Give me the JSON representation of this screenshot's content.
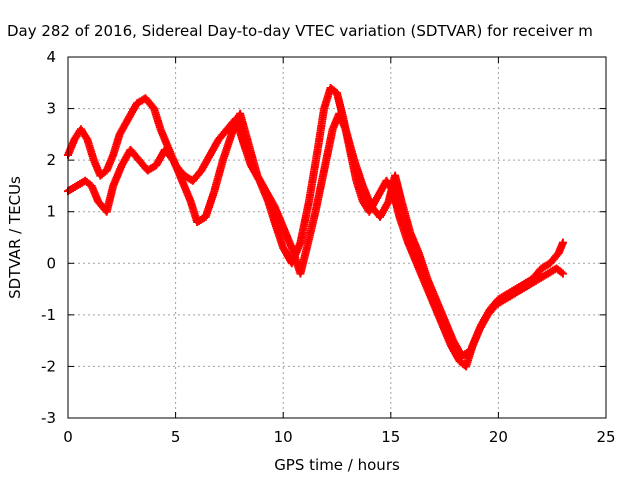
{
  "chart_data": {
    "type": "scatter",
    "title": "Day 282 of 2016, Sidereal Day-to-day VTEC variation (SDTVAR) for receiver m",
    "xlabel": "GPS time / hours",
    "ylabel": "SDTVAR / TECUs",
    "xlim": [
      0,
      25
    ],
    "ylim": [
      -3,
      4
    ],
    "xticks": [
      "0",
      "5",
      "10",
      "15",
      "20",
      "25"
    ],
    "yticks": [
      "4",
      "3",
      "2",
      "1",
      "0",
      "-1",
      "-2",
      "-3"
    ],
    "xtick_values": [
      0,
      5,
      10,
      15,
      20,
      25
    ],
    "ytick_values": [
      4,
      3,
      2,
      1,
      0,
      -1,
      -2,
      -3
    ],
    "grid": true,
    "marker": "plus",
    "color": "#ff0000",
    "series": [
      {
        "x": [
          0.0,
          0.3,
          0.6,
          0.9,
          1.2,
          1.5,
          1.8,
          2.1,
          2.4,
          2.8,
          3.2,
          3.6,
          4.0,
          4.3,
          4.7,
          5.0,
          5.4,
          5.8,
          6.2,
          6.6,
          7.0,
          7.4,
          7.8,
          8.1,
          8.5,
          8.9,
          9.3,
          9.6,
          10.0,
          10.4,
          10.8,
          11.2,
          11.6,
          11.9,
          12.2,
          12.5,
          12.8,
          13.1,
          13.4,
          13.7,
          14.0,
          14.4,
          14.8,
          15.1,
          15.4,
          15.8,
          16.2,
          16.6,
          17.0,
          17.4,
          17.8,
          18.2,
          18.5,
          18.8,
          19.2,
          19.6,
          20.0,
          20.4,
          20.8,
          21.2,
          21.6,
          22.0,
          22.4,
          22.8,
          23.0
        ],
        "y": [
          2.1,
          2.4,
          2.6,
          2.4,
          2.0,
          1.7,
          1.8,
          2.1,
          2.5,
          2.8,
          3.1,
          3.2,
          3.0,
          2.6,
          2.2,
          1.9,
          1.7,
          1.6,
          1.8,
          2.1,
          2.4,
          2.6,
          2.8,
          2.4,
          1.9,
          1.6,
          1.2,
          0.8,
          0.3,
          0.0,
          0.4,
          1.2,
          2.2,
          3.0,
          3.4,
          3.3,
          2.8,
          2.2,
          1.6,
          1.2,
          1.0,
          1.3,
          1.6,
          1.4,
          0.9,
          0.4,
          0.0,
          -0.4,
          -0.8,
          -1.2,
          -1.6,
          -1.9,
          -2.0,
          -1.6,
          -1.2,
          -0.9,
          -0.7,
          -0.6,
          -0.5,
          -0.4,
          -0.3,
          -0.1,
          0.0,
          0.2,
          0.4
        ]
      },
      {
        "x": [
          0.0,
          0.4,
          0.8,
          1.1,
          1.4,
          1.8,
          2.1,
          2.5,
          2.9,
          3.3,
          3.7,
          4.1,
          4.5,
          4.9,
          5.3,
          5.7,
          6.0,
          6.4,
          6.8,
          7.2,
          7.6,
          8.0,
          8.4,
          8.8,
          9.2,
          9.6,
          10.0,
          10.4,
          10.8,
          11.1,
          11.5,
          11.9,
          12.3,
          12.6,
          12.9,
          13.3,
          13.7,
          14.1,
          14.5,
          14.9,
          15.2,
          15.5,
          15.9,
          16.3,
          16.7,
          17.1,
          17.5,
          17.9,
          18.3,
          18.7,
          19.1,
          19.5,
          19.9,
          20.3,
          20.7,
          21.1,
          21.5,
          21.9,
          22.3,
          22.7,
          23.0
        ],
        "y": [
          1.4,
          1.5,
          1.6,
          1.5,
          1.2,
          1.0,
          1.5,
          1.9,
          2.2,
          2.0,
          1.8,
          1.9,
          2.2,
          2.0,
          1.6,
          1.2,
          0.8,
          0.9,
          1.4,
          2.0,
          2.5,
          2.9,
          2.3,
          1.7,
          1.4,
          1.1,
          0.7,
          0.3,
          -0.2,
          0.3,
          1.0,
          1.8,
          2.6,
          2.9,
          2.6,
          2.0,
          1.5,
          1.1,
          0.9,
          1.2,
          1.7,
          1.2,
          0.6,
          0.2,
          -0.3,
          -0.7,
          -1.1,
          -1.5,
          -1.8,
          -1.7,
          -1.3,
          -1.0,
          -0.8,
          -0.7,
          -0.6,
          -0.5,
          -0.4,
          -0.3,
          -0.2,
          -0.1,
          -0.2
        ]
      }
    ]
  }
}
